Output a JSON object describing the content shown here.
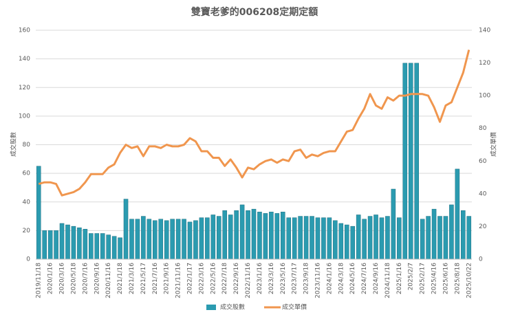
{
  "chart_data": {
    "type": "bar-line",
    "title": "雙寶老爹的006208定期定額",
    "y_label": "成交股數",
    "y2_label": "成交單價",
    "categories": [
      "2019/11/18",
      null,
      "2020/1/16",
      null,
      "2020/3/16",
      null,
      "2020/5/18",
      null,
      "2020/7/16",
      null,
      "2020/9/16",
      null,
      "2020/11/16",
      null,
      "2021/1/18",
      null,
      "2021/3/16",
      null,
      "2021/5/17",
      null,
      "2021/7/16",
      null,
      "2021/9/16",
      null,
      "2021/11/16",
      null,
      "2022/1/17",
      null,
      "2022/3/16",
      null,
      "2022/5/16",
      null,
      "2022/7/18",
      null,
      "2022/9/16",
      null,
      "2022/11/16",
      null,
      "2023/1/16",
      null,
      "2023/3/16",
      null,
      "2023/5/16",
      null,
      "2023/7/17",
      null,
      "2023/9/18",
      null,
      "2023/11/16",
      null,
      "2024/1/16",
      null,
      "2024/3/18",
      null,
      "2024/5/16",
      null,
      "2024/7/16",
      null,
      "2024/9/16",
      null,
      "2024/11/18",
      null,
      "2025/1/16",
      null,
      "2025/2/7",
      null,
      "2025/2/17",
      null,
      "2025/4/16",
      null,
      "2025/6/16",
      null,
      "2025/8/18",
      null,
      "2025/10/22"
    ],
    "series": [
      {
        "name": "成交股數",
        "color": "#2b9bb0",
        "type": "bar",
        "values": [
          65,
          20,
          20,
          20,
          25,
          24,
          23,
          22,
          21,
          18,
          18,
          18,
          17,
          16,
          15,
          42,
          28,
          28,
          30,
          28,
          27,
          28,
          27,
          28,
          28,
          28,
          26,
          27,
          29,
          29,
          31,
          30,
          34,
          31,
          34,
          38,
          34,
          35,
          33,
          32,
          33,
          32,
          33,
          29,
          29,
          30,
          30,
          30,
          29,
          29,
          29,
          27,
          25,
          24,
          23,
          31,
          28,
          30,
          31,
          29,
          30,
          49,
          29,
          137,
          137,
          137,
          28,
          30,
          35,
          30,
          30,
          38,
          63,
          34,
          30
        ]
      },
      {
        "name": "成交單價",
        "color": "#f0964e",
        "type": "line",
        "axis": "y2",
        "values": [
          46,
          47,
          47,
          46,
          39,
          40,
          41,
          43,
          47,
          52,
          52,
          52,
          56,
          58,
          65,
          70,
          68,
          69,
          63,
          69,
          69,
          68,
          70,
          69,
          69,
          70,
          74,
          72,
          66,
          66,
          62,
          62,
          57,
          61,
          56,
          50,
          56,
          55,
          58,
          60,
          61,
          59,
          61,
          60,
          66,
          67,
          62,
          64,
          63,
          65,
          66,
          66,
          72,
          78,
          79,
          86,
          92,
          101,
          94,
          92,
          99,
          97,
          100,
          100,
          101,
          101,
          101,
          100,
          93,
          84,
          94,
          96,
          105,
          114,
          128
        ]
      }
    ],
    "ylim": [
      0,
      160
    ],
    "yticks": [
      0,
      20,
      40,
      60,
      80,
      100,
      120,
      140,
      160
    ],
    "y2lim": [
      0,
      140
    ],
    "y2ticks": [
      0,
      20,
      40,
      60,
      80,
      100,
      120,
      140
    ],
    "grid": true,
    "legend": "bottom"
  }
}
